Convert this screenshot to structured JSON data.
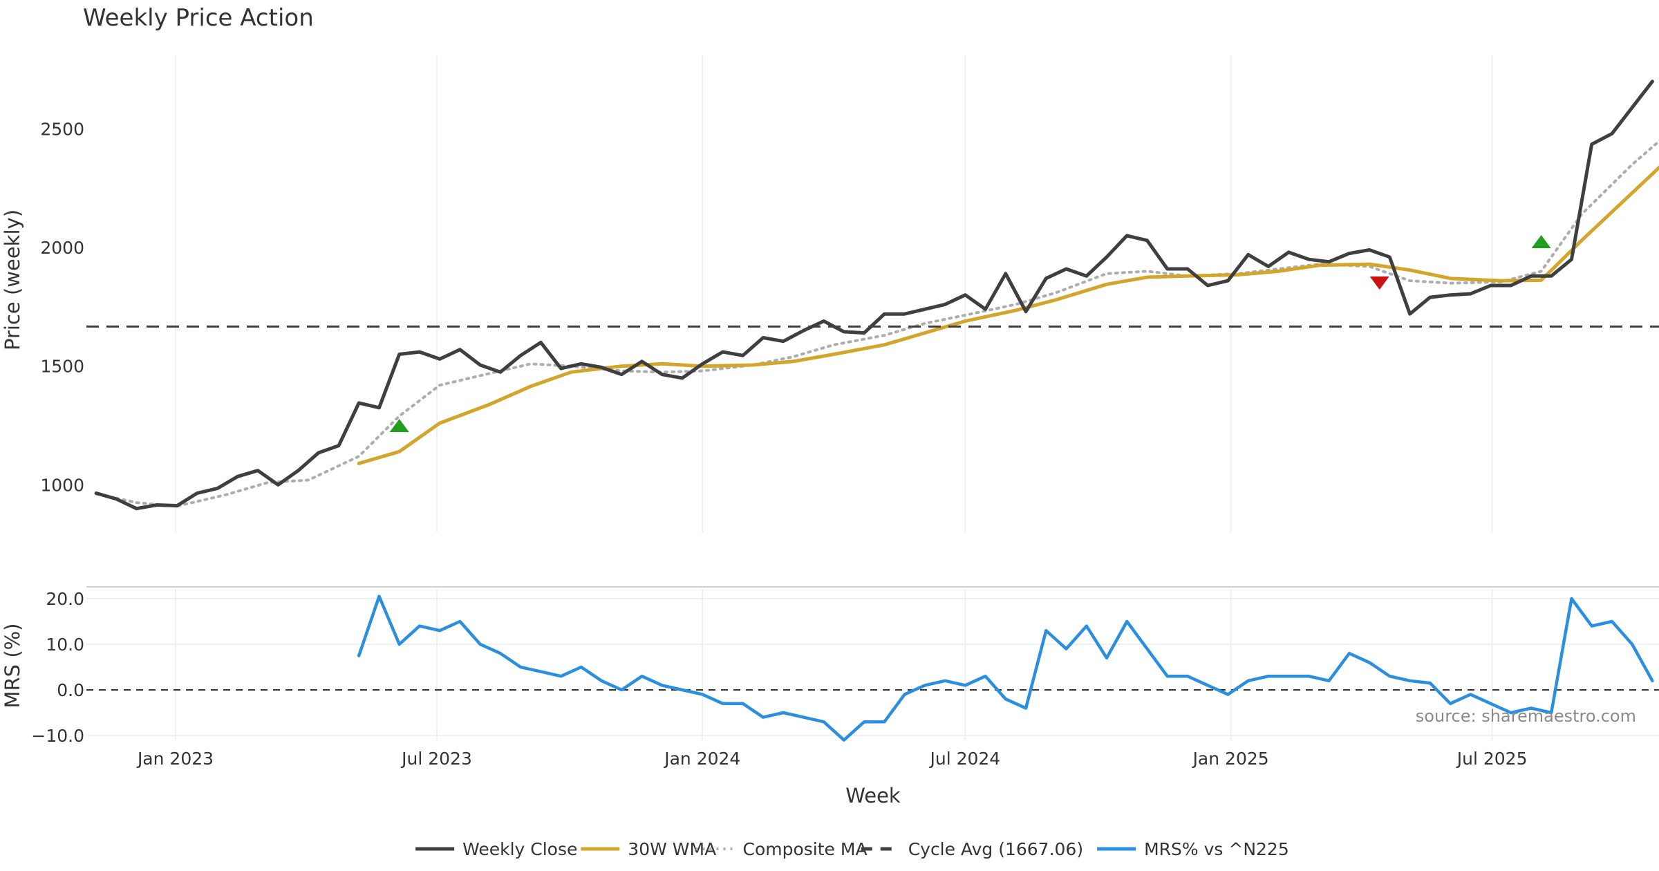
{
  "chart_data": [
    {
      "type": "line",
      "title": "Weekly Price Action",
      "xlabel": "",
      "ylabel": "Price (weekly)",
      "ylim": [
        800,
        2810
      ],
      "yticks": [
        1000,
        1500,
        2000,
        2500
      ],
      "x_range": [
        "2022-11-07",
        "2025-10-20"
      ],
      "grid": "x only",
      "cycle_avg": 1667.06,
      "series": [
        {
          "name": "Weekly Close",
          "color": "#3f3f3f",
          "style": "solid",
          "x": [
            "2022-11-07",
            "2022-11-21",
            "2022-12-05",
            "2022-12-19",
            "2023-01-02",
            "2023-01-16",
            "2023-01-30",
            "2023-02-13",
            "2023-02-27",
            "2023-03-13",
            "2023-03-27",
            "2023-04-10",
            "2023-04-24",
            "2023-05-08",
            "2023-05-22",
            "2023-06-05",
            "2023-06-19",
            "2023-07-03",
            "2023-07-17",
            "2023-07-31",
            "2023-08-14",
            "2023-08-28",
            "2023-09-11",
            "2023-09-25",
            "2023-10-09",
            "2023-10-23",
            "2023-11-06",
            "2023-11-20",
            "2023-12-04",
            "2023-12-18",
            "2024-01-01",
            "2024-01-15",
            "2024-01-29",
            "2024-02-12",
            "2024-02-26",
            "2024-03-11",
            "2024-03-25",
            "2024-04-08",
            "2024-04-22",
            "2024-05-06",
            "2024-05-20",
            "2024-06-03",
            "2024-06-17",
            "2024-07-01",
            "2024-07-15",
            "2024-07-29",
            "2024-08-12",
            "2024-08-26",
            "2024-09-09",
            "2024-09-23",
            "2024-10-07",
            "2024-10-21",
            "2024-11-04",
            "2024-11-18",
            "2024-12-02",
            "2024-12-16",
            "2024-12-30",
            "2025-01-13",
            "2025-01-27",
            "2025-02-10",
            "2025-02-24",
            "2025-03-10",
            "2025-03-24",
            "2025-04-07",
            "2025-04-21",
            "2025-05-05",
            "2025-05-19",
            "2025-06-02",
            "2025-06-16",
            "2025-06-30",
            "2025-07-14",
            "2025-07-28",
            "2025-08-11",
            "2025-08-25",
            "2025-09-08",
            "2025-09-22",
            "2025-10-06",
            "2025-10-20"
          ],
          "values": [
            965,
            940,
            900,
            915,
            912,
            965,
            985,
            1035,
            1060,
            1000,
            1060,
            1135,
            1165,
            1345,
            1325,
            1550,
            1560,
            1530,
            1570,
            1505,
            1475,
            1545,
            1600,
            1490,
            1510,
            1495,
            1465,
            1520,
            1465,
            1450,
            1510,
            1560,
            1545,
            1620,
            1605,
            1650,
            1690,
            1645,
            1640,
            1720,
            1720,
            1740,
            1760,
            1800,
            1740,
            1890,
            1730,
            1870,
            1910,
            1880,
            1960,
            2050,
            2030,
            1910,
            1910,
            1840,
            1860,
            1970,
            1920,
            1980,
            1950,
            1940,
            1975,
            1990,
            1960,
            1720,
            1790,
            1800,
            1805,
            1840,
            1840,
            1880,
            1880,
            1950,
            2435,
            2480,
            2590,
            2700
          ]
        },
        {
          "name": "30W WMA",
          "color": "#d4a52b",
          "style": "solid",
          "x": [
            "2023-05-08",
            "2023-06-05",
            "2023-07-03",
            "2023-08-07",
            "2023-09-04",
            "2023-10-02",
            "2023-11-06",
            "2023-12-04",
            "2024-01-01",
            "2024-02-05",
            "2024-03-04",
            "2024-04-01",
            "2024-05-06",
            "2024-06-03",
            "2024-07-01",
            "2024-08-05",
            "2024-09-02",
            "2024-10-07",
            "2024-11-04",
            "2024-12-02",
            "2025-01-06",
            "2025-02-03",
            "2025-03-03",
            "2025-04-07",
            "2025-05-05",
            "2025-06-02",
            "2025-07-07",
            "2025-08-04",
            "2025-09-01",
            "2025-10-06",
            "2025-10-27"
          ],
          "values": [
            1090,
            1140,
            1260,
            1340,
            1415,
            1475,
            1500,
            1510,
            1500,
            1505,
            1520,
            1550,
            1590,
            1640,
            1690,
            1735,
            1780,
            1845,
            1875,
            1880,
            1885,
            1900,
            1925,
            1930,
            1905,
            1870,
            1860,
            1862,
            2030,
            2230,
            2350
          ]
        },
        {
          "name": "Composite MA",
          "color": "#adadad",
          "style": "dotted",
          "x": [
            "2022-11-07",
            "2022-12-05",
            "2023-01-02",
            "2023-02-06",
            "2023-03-06",
            "2023-04-03",
            "2023-05-08",
            "2023-06-05",
            "2023-07-03",
            "2023-08-07",
            "2023-09-04",
            "2023-10-02",
            "2023-11-06",
            "2023-12-04",
            "2024-01-01",
            "2024-02-05",
            "2024-03-04",
            "2024-04-01",
            "2024-05-06",
            "2024-06-03",
            "2024-07-01",
            "2024-08-05",
            "2024-09-02",
            "2024-10-07",
            "2024-11-04",
            "2024-12-02",
            "2025-01-06",
            "2025-02-03",
            "2025-03-03",
            "2025-04-07",
            "2025-05-05",
            "2025-06-02",
            "2025-07-07",
            "2025-08-04",
            "2025-09-01",
            "2025-10-06",
            "2025-10-27"
          ],
          "values": [
            962,
            925,
            910,
            960,
            1010,
            1020,
            1120,
            1290,
            1420,
            1470,
            1510,
            1500,
            1480,
            1475,
            1480,
            1505,
            1540,
            1590,
            1630,
            1680,
            1715,
            1760,
            1810,
            1890,
            1900,
            1880,
            1890,
            1910,
            1930,
            1920,
            1860,
            1850,
            1855,
            1900,
            2140,
            2350,
            2460
          ]
        },
        {
          "name": "Cycle Avg (1667.06)",
          "color": "#3f3f3f",
          "style": "dashed",
          "values": [
            1667.06
          ]
        }
      ],
      "markers": [
        {
          "label": "buy",
          "shape": "triangle-up",
          "color": "#1f9e1f",
          "x": "2023-06-05",
          "y": 1250
        },
        {
          "label": "sell",
          "shape": "triangle-down",
          "color": "#cc1111",
          "x": "2025-04-14",
          "y": 1850
        },
        {
          "label": "buy",
          "shape": "triangle-up",
          "color": "#1f9e1f",
          "x": "2025-08-04",
          "y": 2025
        }
      ]
    },
    {
      "type": "line",
      "title": "",
      "xlabel": "Week",
      "ylabel": "MRS (%)",
      "ylim": [
        -12,
        23
      ],
      "yticks": [
        -10.0,
        0.0,
        10.0,
        20.0
      ],
      "ytick_labels": [
        "−10.0",
        "0.0",
        "10.0",
        "20.0"
      ],
      "xtick_labels": [
        "Jan 2023",
        "Jul 2023",
        "Jan 2024",
        "Jul 2024",
        "Jan 2025",
        "Jul 2025"
      ],
      "xtick_dates": [
        "2023-01-01",
        "2023-07-01",
        "2024-01-01",
        "2024-07-01",
        "2025-01-01",
        "2025-07-01"
      ],
      "zero_line": 0,
      "series": [
        {
          "name": "MRS% vs ^N225",
          "color": "#2b8fe0",
          "style": "solid",
          "x": [
            "2023-05-08",
            "2023-05-22",
            "2023-06-05",
            "2023-06-19",
            "2023-07-03",
            "2023-07-17",
            "2023-07-31",
            "2023-08-14",
            "2023-08-28",
            "2023-09-11",
            "2023-09-25",
            "2023-10-09",
            "2023-10-23",
            "2023-11-06",
            "2023-11-20",
            "2023-12-04",
            "2023-12-18",
            "2024-01-01",
            "2024-01-15",
            "2024-01-29",
            "2024-02-12",
            "2024-02-26",
            "2024-03-11",
            "2024-03-25",
            "2024-04-08",
            "2024-04-22",
            "2024-05-06",
            "2024-05-20",
            "2024-06-03",
            "2024-06-17",
            "2024-07-01",
            "2024-07-15",
            "2024-07-29",
            "2024-08-12",
            "2024-08-26",
            "2024-09-09",
            "2024-09-23",
            "2024-10-07",
            "2024-10-21",
            "2024-11-04",
            "2024-11-18",
            "2024-12-02",
            "2024-12-16",
            "2024-12-30",
            "2025-01-13",
            "2025-01-27",
            "2025-02-10",
            "2025-02-24",
            "2025-03-10",
            "2025-03-24",
            "2025-04-07",
            "2025-04-21",
            "2025-05-05",
            "2025-05-19",
            "2025-06-02",
            "2025-06-16",
            "2025-06-30",
            "2025-07-14",
            "2025-07-28",
            "2025-08-11",
            "2025-08-25",
            "2025-09-08",
            "2025-09-22",
            "2025-10-06",
            "2025-10-20"
          ],
          "values": [
            7.5,
            20.5,
            10,
            14,
            13,
            15,
            10,
            8,
            5,
            4,
            3,
            5,
            2,
            0,
            3,
            1,
            0,
            -1,
            -3,
            -3,
            -6,
            -5,
            -6,
            -7,
            -11,
            -7,
            -7,
            -1,
            1,
            2,
            1,
            3,
            -2,
            -4,
            13,
            9,
            14,
            7,
            15,
            9,
            3,
            3,
            1,
            -1,
            2,
            3,
            3,
            3,
            2,
            8,
            6,
            3,
            2,
            1.5,
            -3,
            -1,
            -3,
            -5,
            -4,
            -5,
            20,
            14,
            15,
            10,
            2
          ]
        }
      ],
      "source_note": "source: sharemaestro.com"
    }
  ],
  "legend": {
    "position": "bottom-center",
    "items": [
      {
        "label": "Weekly Close",
        "color": "#3f3f3f",
        "style": "solid"
      },
      {
        "label": "30W WMA",
        "color": "#d4a52b",
        "style": "solid"
      },
      {
        "label": "Composite MA",
        "color": "#adadad",
        "style": "dotted"
      },
      {
        "label": "Cycle Avg (1667.06)",
        "color": "#3f3f3f",
        "style": "dashed"
      },
      {
        "label": "MRS% vs ^N225",
        "color": "#2b8fe0",
        "style": "solid"
      }
    ]
  }
}
